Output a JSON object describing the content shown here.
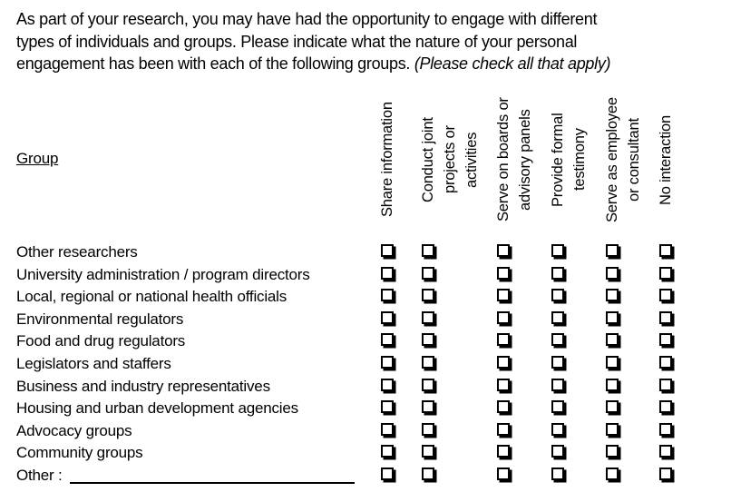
{
  "intro": {
    "line1": "As part of your research, you may have had the opportunity to engage with different",
    "line2": "types of individuals and groups. Please indicate what the nature of your personal",
    "line3_normal": "engagement has been with each of the following groups. ",
    "line3_italic": "(Please check all that apply)"
  },
  "table": {
    "group_header": "Group",
    "columns": [
      {
        "label": "Share information",
        "lines": [
          "Share information"
        ]
      },
      {
        "label": "Conduct joint projects or activities",
        "lines": [
          "Conduct joint",
          "projects or",
          "activities"
        ]
      },
      {
        "label": "Serve on boards or advisory panels",
        "lines": [
          "Serve on boards or",
          "advisory panels"
        ]
      },
      {
        "label": "Provide formal testimony",
        "lines": [
          "Provide formal",
          "testimony"
        ]
      },
      {
        "label": "Serve as employee or consultant",
        "lines": [
          "Serve as employee",
          "or consultant"
        ]
      },
      {
        "label": "No interaction",
        "lines": [
          "No interaction"
        ]
      }
    ],
    "rows": [
      "Other researchers",
      "University administration / program directors",
      "Local, regional or national health officials",
      "Environmental regulators",
      "Food and drug regulators",
      "Legislators and staffers",
      "Business and industry representatives",
      "Housing and urban development agencies",
      "Advocacy groups",
      "Community groups",
      "Other :"
    ],
    "checkbox_icon": "shadowed-square-unchecked-checkbox-icon",
    "checkbox_state": "unchecked",
    "text_color": "#000000",
    "background_color": "#ffffff"
  }
}
